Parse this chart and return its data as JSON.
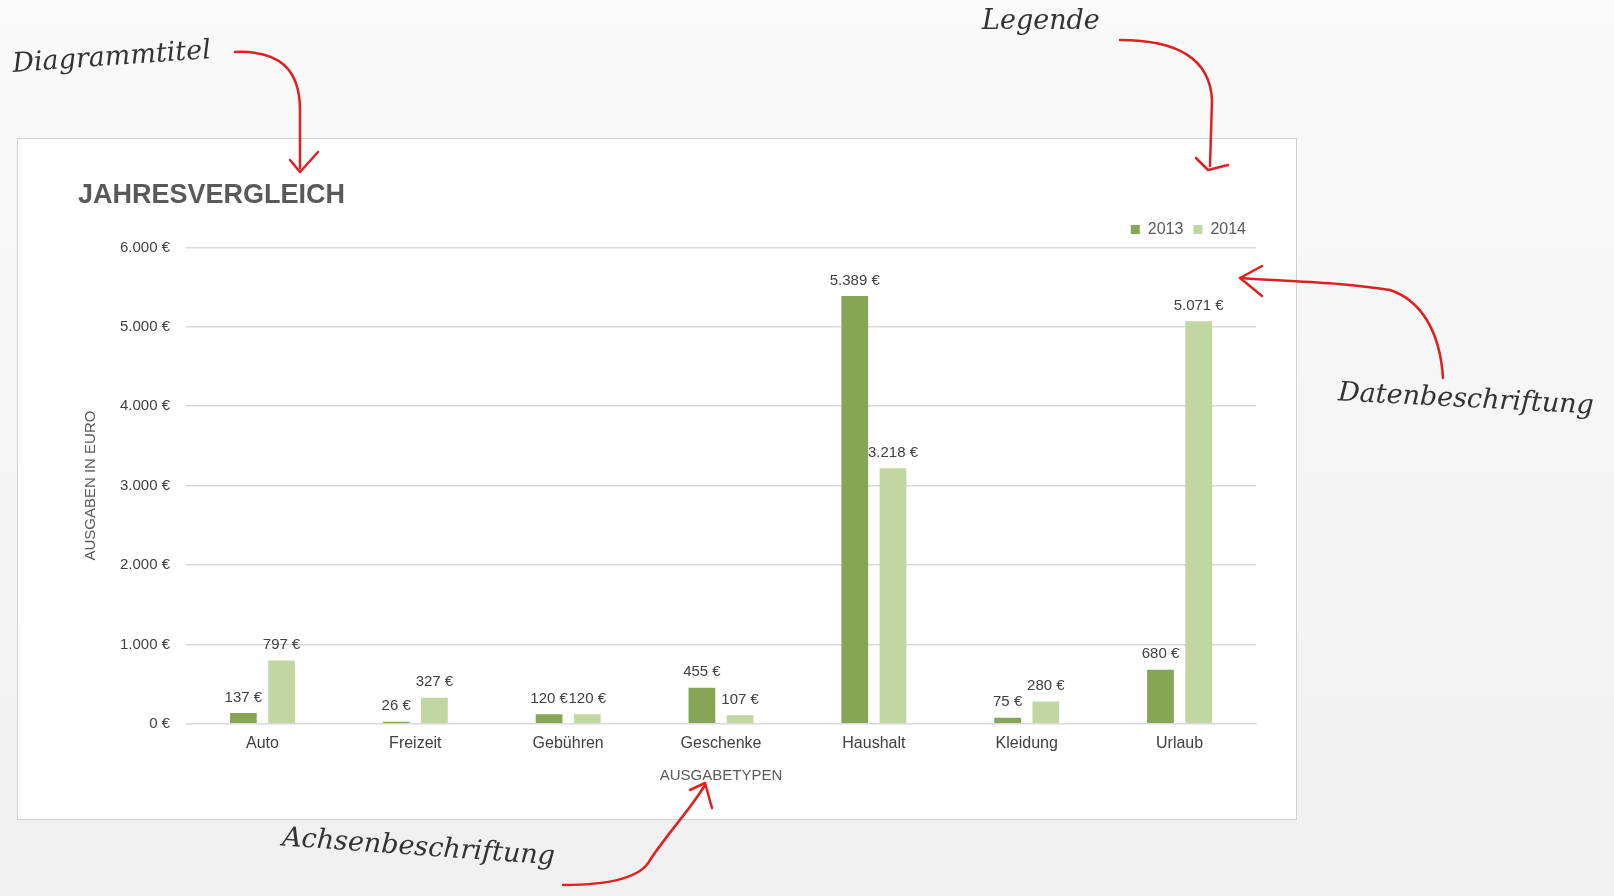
{
  "chart_data": {
    "type": "bar",
    "title": "JAHRESVERGLEICH",
    "xlabel": "AUSGABETYPEN",
    "ylabel": "AUSGABEN IN EURO",
    "categories": [
      "Auto",
      "Freizeit",
      "Gebühren",
      "Geschenke",
      "Haushalt",
      "Kleidung",
      "Urlaub"
    ],
    "series": [
      {
        "name": "2013",
        "color": "#86a656",
        "values": [
          137,
          26,
          120,
          455,
          5389,
          75,
          680
        ],
        "value_labels": [
          "137 €",
          "26 €",
          "120 €",
          "455 €",
          "5.389 €",
          "75 €",
          "680 €"
        ]
      },
      {
        "name": "2014",
        "color": "#c2d6a2",
        "values": [
          797,
          327,
          120,
          107,
          3218,
          280,
          5071
        ],
        "value_labels": [
          "797 €",
          "327 €",
          "120 €",
          "107 €",
          "3.218 €",
          "280 €",
          "5.071 €"
        ]
      }
    ],
    "ylim": [
      0,
      6000
    ],
    "yticks": [
      {
        "value": 0,
        "label": "0 €"
      },
      {
        "value": 1000,
        "label": "1.000 €"
      },
      {
        "value": 2000,
        "label": "2.000 €"
      },
      {
        "value": 3000,
        "label": "3.000 €"
      },
      {
        "value": 4000,
        "label": "4.000 €"
      },
      {
        "value": 5000,
        "label": "5.000 €"
      },
      {
        "value": 6000,
        "label": "6.000 €"
      }
    ],
    "grid": "y",
    "legend": "top right",
    "annotations": [
      "Diagrammtitel",
      "Legende",
      "Datenbeschriftung",
      "Achsenbeschriftung"
    ]
  }
}
